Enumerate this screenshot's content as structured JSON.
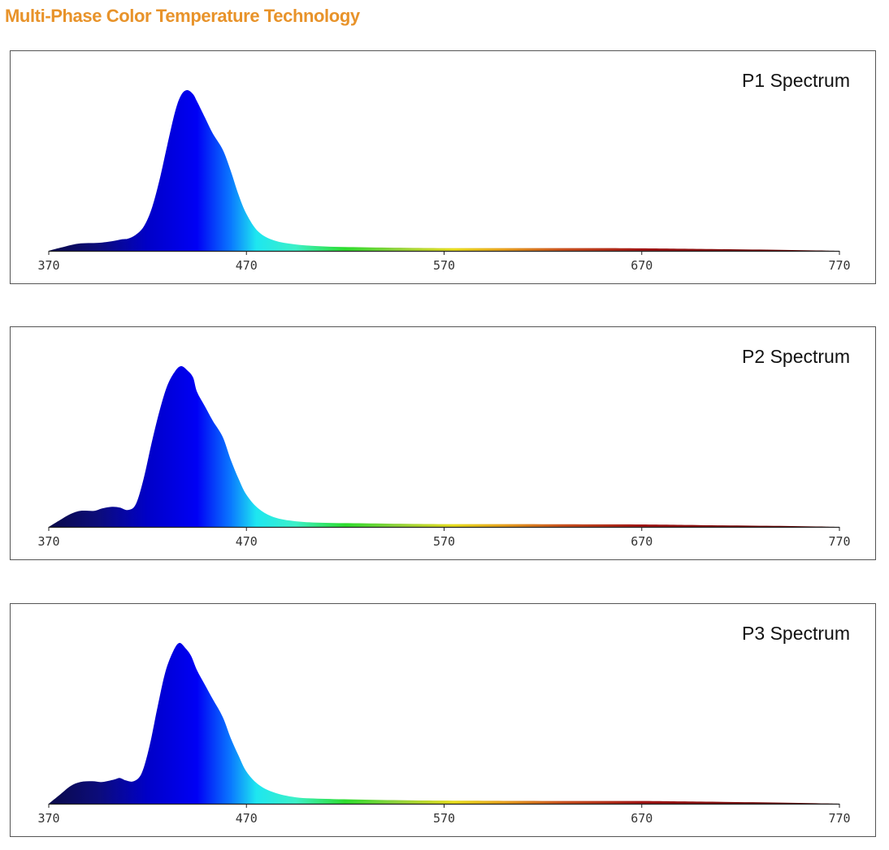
{
  "title": "Multi-Phase Color Temperature Technology",
  "title_color": "#e8932a",
  "chart_data": [
    {
      "type": "area",
      "title": "P1 Spectrum",
      "xlim": [
        370,
        770
      ],
      "ylim": [
        0,
        1
      ],
      "xticks": [
        "370",
        "470",
        "570",
        "670",
        "770"
      ],
      "grid": false,
      "legend": "none",
      "fill": "spectral gradient",
      "x": [
        370,
        376,
        385,
        395,
        402,
        407,
        410,
        414,
        418,
        422,
        426,
        430,
        434,
        437,
        440,
        443,
        445,
        449,
        453,
        458,
        462,
        466,
        470,
        476,
        484,
        495,
        510,
        530,
        560,
        600,
        640,
        670,
        700,
        740,
        770
      ],
      "y": [
        0,
        0.02,
        0.045,
        0.05,
        0.06,
        0.072,
        0.076,
        0.1,
        0.15,
        0.26,
        0.44,
        0.66,
        0.87,
        0.97,
        1.0,
        0.975,
        0.93,
        0.83,
        0.73,
        0.63,
        0.5,
        0.35,
        0.23,
        0.12,
        0.065,
        0.04,
        0.027,
        0.022,
        0.018,
        0.017,
        0.017,
        0.016,
        0.012,
        0.006,
        0
      ]
    },
    {
      "type": "area",
      "title": "P2 Spectrum",
      "xlim": [
        370,
        770
      ],
      "ylim": [
        0,
        1
      ],
      "xticks": [
        "370",
        "470",
        "570",
        "670",
        "770"
      ],
      "grid": false,
      "legend": "none",
      "fill": "spectral gradient",
      "x": [
        370,
        376,
        381,
        386,
        393,
        397,
        402,
        406,
        410,
        414,
        418,
        422,
        426,
        430,
        434,
        437,
        440,
        443,
        445,
        449,
        453,
        458,
        462,
        466,
        470,
        476,
        484,
        495,
        510,
        530,
        560,
        600,
        640,
        670,
        700,
        740,
        770
      ],
      "y": [
        0,
        0.045,
        0.08,
        0.1,
        0.1,
        0.115,
        0.125,
        0.12,
        0.105,
        0.14,
        0.3,
        0.52,
        0.72,
        0.88,
        0.97,
        1.0,
        0.975,
        0.93,
        0.84,
        0.75,
        0.66,
        0.56,
        0.42,
        0.3,
        0.2,
        0.115,
        0.06,
        0.035,
        0.025,
        0.022,
        0.018,
        0.017,
        0.016,
        0.015,
        0.011,
        0.006,
        0
      ]
    },
    {
      "type": "area",
      "title": "P3 Spectrum",
      "xlim": [
        370,
        770
      ],
      "ylim": [
        0,
        1
      ],
      "xticks": [
        "370",
        "470",
        "570",
        "670",
        "770"
      ],
      "grid": false,
      "legend": "none",
      "fill": "spectral gradient",
      "x": [
        370,
        376,
        381,
        386,
        392,
        397,
        403,
        406,
        409,
        413,
        417,
        421,
        425,
        429,
        433,
        436,
        439,
        442,
        445,
        449,
        453,
        458,
        462,
        466,
        470,
        476,
        484,
        495,
        510,
        530,
        560,
        600,
        640,
        670,
        700,
        740,
        770
      ],
      "y": [
        0,
        0.06,
        0.11,
        0.135,
        0.14,
        0.135,
        0.15,
        0.16,
        0.145,
        0.14,
        0.19,
        0.36,
        0.6,
        0.82,
        0.95,
        1.0,
        0.97,
        0.92,
        0.83,
        0.74,
        0.65,
        0.54,
        0.41,
        0.3,
        0.2,
        0.12,
        0.07,
        0.04,
        0.03,
        0.025,
        0.02,
        0.018,
        0.017,
        0.017,
        0.013,
        0.007,
        0
      ]
    }
  ]
}
